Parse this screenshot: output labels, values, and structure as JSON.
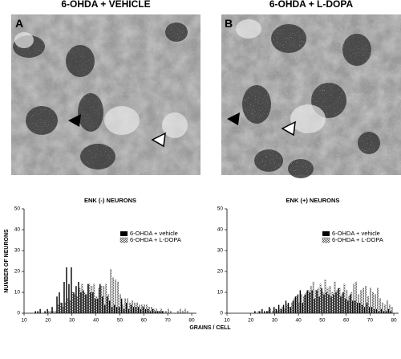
{
  "figure": {
    "panels": [
      {
        "label": "A",
        "title": "6-OHDA + VEHICLE"
      },
      {
        "label": "B",
        "title": "6-OHDA + L-DOPA"
      }
    ],
    "xlabel": "GRAINS / CELL"
  },
  "chart_data": [
    {
      "type": "bar",
      "title": "ENK (-) NEURONS",
      "ylabel": "NUMBER OF NEURONS",
      "x": [
        15,
        16,
        17,
        18,
        19,
        20,
        21,
        22,
        23,
        24,
        25,
        26,
        27,
        28,
        29,
        30,
        31,
        32,
        33,
        34,
        35,
        36,
        37,
        38,
        39,
        40,
        41,
        42,
        43,
        44,
        45,
        46,
        47,
        48,
        49,
        50,
        51,
        52,
        53,
        54,
        55,
        56,
        57,
        58,
        59,
        60,
        61,
        62,
        63,
        64,
        65,
        66,
        67,
        68,
        69,
        70,
        71,
        72,
        73,
        74,
        75,
        76,
        77,
        78,
        79
      ],
      "series": [
        {
          "name": "6-OHDA + vehicle",
          "color": "#000000",
          "hatch": false,
          "values": [
            1,
            1,
            2,
            0,
            1,
            2,
            0,
            3,
            0,
            8,
            10,
            5,
            15,
            22,
            14,
            22,
            10,
            13,
            15,
            10,
            11,
            9,
            14,
            10,
            10,
            7,
            7,
            14,
            8,
            4,
            8,
            6,
            3,
            4,
            3,
            3,
            7,
            2,
            5,
            2,
            4,
            3,
            3,
            3,
            2,
            3,
            2,
            2,
            1,
            2,
            1,
            1,
            1,
            1,
            0,
            0,
            0,
            0,
            0,
            0,
            0,
            0,
            0,
            0,
            0
          ]
        },
        {
          "name": "6-OHDA + L-DOPA",
          "color": "#555555",
          "hatch": true,
          "values": [
            0,
            0,
            0,
            0,
            0,
            1,
            1,
            1,
            1,
            4,
            5,
            3,
            5,
            7,
            6,
            10,
            9,
            8,
            12,
            14,
            10,
            9,
            14,
            13,
            14,
            8,
            12,
            13,
            13,
            14,
            9,
            21,
            17,
            16,
            15,
            9,
            4,
            7,
            7,
            5,
            6,
            5,
            5,
            4,
            4,
            4,
            4,
            3,
            3,
            2,
            2,
            1,
            2,
            1,
            1,
            2,
            1,
            0,
            0,
            1,
            2,
            1,
            2,
            1,
            0
          ]
        }
      ],
      "xlim": [
        10,
        82
      ],
      "xticks": [
        10,
        20,
        30,
        40,
        50,
        60,
        70,
        80
      ],
      "ylim": [
        0,
        50
      ],
      "yticks": [
        0,
        10,
        20,
        30,
        40,
        50
      ],
      "legend": "upper right"
    },
    {
      "type": "bar",
      "title": "ENK (+) NEURONS",
      "x": [
        15,
        16,
        17,
        18,
        19,
        20,
        21,
        22,
        23,
        24,
        25,
        26,
        27,
        28,
        29,
        30,
        31,
        32,
        33,
        34,
        35,
        36,
        37,
        38,
        39,
        40,
        41,
        42,
        43,
        44,
        45,
        46,
        47,
        48,
        49,
        50,
        51,
        52,
        53,
        54,
        55,
        56,
        57,
        58,
        59,
        60,
        61,
        62,
        63,
        64,
        65,
        66,
        67,
        68,
        69,
        70,
        71,
        72,
        73,
        74,
        75,
        76,
        77,
        78,
        79
      ],
      "series": [
        {
          "name": "6-OHDA + vehicle",
          "color": "#000000",
          "hatch": false,
          "values": [
            0,
            0,
            0,
            0,
            0,
            0,
            0,
            1,
            0,
            1,
            2,
            1,
            1,
            3,
            0,
            3,
            2,
            4,
            2,
            4,
            6,
            5,
            3,
            6,
            8,
            9,
            11,
            5,
            9,
            11,
            10,
            11,
            7,
            11,
            8,
            12,
            9,
            10,
            9,
            8,
            9,
            10,
            12,
            8,
            10,
            7,
            6,
            9,
            6,
            6,
            5,
            5,
            4,
            3,
            5,
            3,
            3,
            2,
            2,
            1,
            2,
            1,
            1,
            2,
            1
          ]
        },
        {
          "name": "6-OHDA + L-DOPA",
          "color": "#555555",
          "hatch": true,
          "values": [
            0,
            0,
            0,
            0,
            0,
            0,
            0,
            0,
            1,
            0,
            0,
            0,
            1,
            2,
            1,
            2,
            1,
            2,
            3,
            2,
            4,
            3,
            5,
            7,
            8,
            5,
            9,
            8,
            10,
            11,
            13,
            15,
            11,
            12,
            14,
            10,
            16,
            12,
            13,
            10,
            15,
            11,
            12,
            9,
            14,
            11,
            8,
            10,
            14,
            15,
            9,
            11,
            12,
            13,
            8,
            12,
            10,
            9,
            12,
            7,
            5,
            4,
            6,
            4,
            3
          ]
        }
      ],
      "xlim": [
        10,
        82
      ],
      "xticks": [
        10,
        20,
        30,
        40,
        50,
        60,
        70,
        80
      ],
      "ylim": [
        0,
        50
      ],
      "yticks": [
        0,
        10,
        20,
        30,
        40,
        50
      ],
      "legend": "upper right"
    }
  ]
}
